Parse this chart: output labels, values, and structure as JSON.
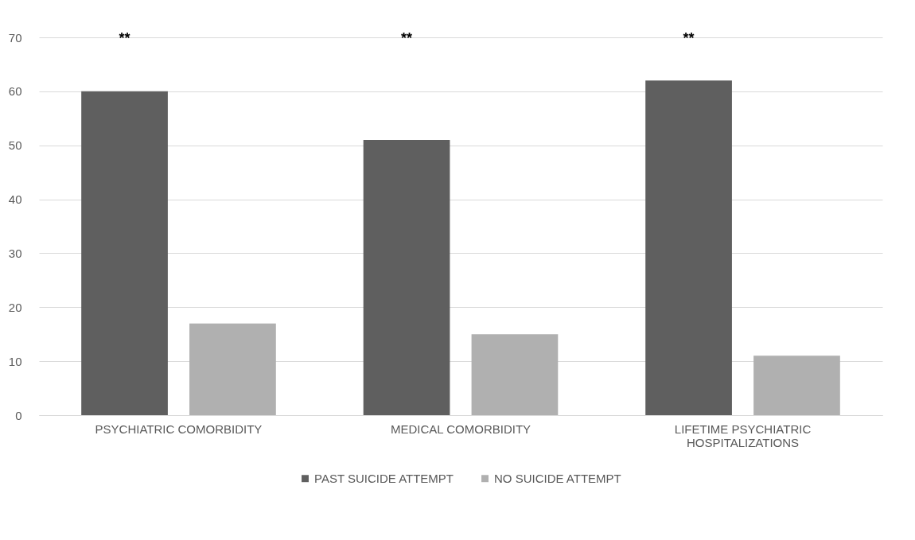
{
  "chart_data": {
    "type": "bar",
    "categories": [
      "PSYCHIATRIC COMORBIDITY",
      "MEDICAL COMORBIDITY",
      "LIFETIME PSYCHIATRIC HOSPITALIZATIONS"
    ],
    "series": [
      {
        "name": "PAST SUICIDE ATTEMPT",
        "color": "#5f5f5f",
        "values": [
          60,
          51,
          62
        ]
      },
      {
        "name": "NO SUICIDE ATTEMPT",
        "color": "#b0b0b0",
        "values": [
          17,
          15,
          11
        ]
      }
    ],
    "ylim": [
      0,
      70
    ],
    "yticks": [
      0,
      10,
      20,
      30,
      40,
      50,
      60,
      70
    ],
    "grid": "y",
    "legend": "bottom",
    "annotations": [
      "**",
      "**",
      "**"
    ]
  }
}
